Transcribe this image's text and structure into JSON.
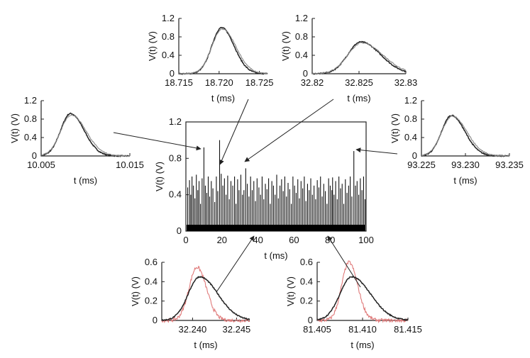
{
  "chart_data": [
    {
      "id": "main",
      "type": "line",
      "xlabel": "t  (ms)",
      "ylabel": "V(t)  (V)",
      "xlim": [
        0,
        100
      ],
      "ylim": [
        0,
        1.2
      ],
      "xticks": [
        "0",
        "20",
        "40",
        "60",
        "80",
        "100"
      ],
      "yticks": [
        "0",
        "0.4",
        "0.8",
        "1.2"
      ],
      "baseline_noise": [
        0,
        0.07
      ],
      "spikes": {
        "t": [
          1.0,
          2.0,
          2.7,
          3.4,
          4.2,
          5.0,
          5.8,
          6.6,
          7.3,
          8.1,
          9.0,
          10.0,
          10.8,
          11.6,
          12.4,
          13.2,
          14.1,
          15.0,
          16.0,
          16.9,
          17.7,
          18.7,
          19.6,
          20.5,
          21.4,
          22.3,
          23.2,
          24.1,
          25.0,
          26.0,
          27.0,
          27.8,
          28.7,
          29.5,
          30.5,
          31.4,
          32.2,
          33.2,
          34.1,
          35.0,
          35.9,
          36.8,
          37.7,
          38.6,
          39.5,
          40.5,
          41.4,
          42.3,
          43.2,
          44.1,
          45.0,
          45.9,
          46.8,
          47.7,
          48.6,
          49.5,
          50.4,
          51.3,
          52.2,
          53.1,
          54.0,
          54.9,
          55.8,
          56.7,
          57.6,
          58.5,
          59.4,
          60.3,
          61.2,
          62.1,
          63.0,
          63.9,
          64.8,
          65.7,
          66.6,
          67.5,
          68.4,
          69.3,
          70.2,
          71.1,
          72.0,
          72.9,
          73.8,
          74.7,
          75.6,
          76.5,
          77.4,
          78.3,
          79.2,
          80.1,
          81.0,
          81.4,
          82.2,
          83.1,
          84.0,
          84.9,
          85.8,
          86.7,
          87.6,
          88.5,
          89.4,
          90.3,
          91.2,
          92.1,
          93.2,
          94.1,
          95.0,
          95.9,
          96.8,
          97.7,
          98.6,
          99.4
        ],
        "v": [
          0.48,
          0.56,
          0.4,
          0.6,
          0.5,
          0.36,
          0.62,
          0.45,
          0.55,
          0.3,
          0.58,
          0.92,
          0.5,
          0.42,
          0.6,
          0.38,
          0.55,
          0.47,
          0.32,
          0.6,
          0.44,
          1.0,
          0.63,
          0.5,
          0.58,
          0.4,
          0.61,
          0.35,
          0.55,
          0.5,
          0.6,
          0.3,
          0.57,
          0.45,
          0.62,
          0.4,
          0.45,
          0.69,
          0.52,
          0.38,
          0.6,
          0.45,
          0.55,
          0.33,
          0.58,
          0.48,
          0.4,
          0.6,
          0.35,
          0.52,
          0.46,
          0.58,
          0.3,
          0.55,
          0.5,
          0.4,
          0.62,
          0.36,
          0.5,
          0.57,
          0.44,
          0.6,
          0.38,
          0.53,
          0.46,
          0.3,
          0.6,
          0.5,
          0.42,
          0.57,
          0.36,
          0.55,
          0.47,
          0.6,
          0.33,
          0.52,
          0.45,
          0.58,
          0.4,
          0.5,
          0.35,
          0.56,
          0.48,
          0.6,
          0.38,
          0.52,
          0.44,
          0.3,
          0.58,
          0.5,
          0.45,
          0.59,
          0.4,
          0.55,
          0.35,
          0.6,
          0.47,
          0.52,
          0.3,
          0.57,
          0.42,
          0.5,
          0.6,
          0.38,
          0.88,
          0.5,
          0.55,
          0.4,
          0.58,
          0.45,
          0.6,
          0.35
        ]
      }
    },
    {
      "id": "inset-10",
      "type": "line",
      "xlabel": "t  (ms)",
      "ylabel": "V(t)  (V)",
      "xlim": [
        10.005,
        10.015
      ],
      "ylim": [
        0,
        1.2
      ],
      "xticks": [
        "10.005",
        "10.015"
      ],
      "yticks": [
        "0",
        "0.4",
        "0.8",
        "1.2"
      ],
      "series": [
        {
          "color": "#222222",
          "peak_t": 10.0083,
          "peak_v": 0.92,
          "width": 0.0011,
          "skew": 1.4
        },
        {
          "color": "#888888",
          "peak_t": 10.0084,
          "peak_v": 0.89,
          "width": 0.0012,
          "skew": 1.4
        }
      ]
    },
    {
      "id": "inset-18",
      "type": "line",
      "xlabel": "t  (ms)",
      "ylabel": "V(t)  (V)",
      "xlim": [
        18.715,
        18.726
      ],
      "ylim": [
        0,
        1.2
      ],
      "xticks": [
        "18.715",
        "18.720",
        "18.725"
      ],
      "yticks": [
        "0",
        "0.4",
        "0.8",
        "1.2"
      ],
      "series": [
        {
          "color": "#222222",
          "peak_t": 18.7203,
          "peak_v": 1.0,
          "width": 0.0012,
          "skew": 1.3
        },
        {
          "color": "#888888",
          "peak_t": 18.7204,
          "peak_v": 0.97,
          "width": 0.0013,
          "skew": 1.3
        }
      ]
    },
    {
      "id": "inset-32b",
      "type": "line",
      "xlabel": "t  (ms)",
      "ylabel": "V(t)  (V)",
      "xlim": [
        32.82,
        32.83
      ],
      "ylim": [
        0,
        1.2
      ],
      "xticks": [
        "32.82",
        "32.825",
        "32.83"
      ],
      "yticks": [
        "0",
        "0.4",
        "0.8",
        "1.2"
      ],
      "series": [
        {
          "color": "#222222",
          "peak_t": 32.8252,
          "peak_v": 0.69,
          "width": 0.0014,
          "skew": 1.5
        },
        {
          "color": "#888888",
          "peak_t": 32.8253,
          "peak_v": 0.67,
          "width": 0.0015,
          "skew": 1.5
        }
      ]
    },
    {
      "id": "inset-93",
      "type": "line",
      "xlabel": "t  (ms)",
      "ylabel": "V(t)  (V)",
      "xlim": [
        93.225,
        93.235
      ],
      "ylim": [
        0,
        1.2
      ],
      "xticks": [
        "93.225",
        "93.230",
        "93.235"
      ],
      "yticks": [
        "0",
        "0.4",
        "0.8",
        "1.2"
      ],
      "series": [
        {
          "color": "#222222",
          "peak_t": 93.2284,
          "peak_v": 0.88,
          "width": 0.0011,
          "skew": 1.4
        },
        {
          "color": "#888888",
          "peak_t": 93.2285,
          "peak_v": 0.86,
          "width": 0.0012,
          "skew": 1.4
        }
      ]
    },
    {
      "id": "inset-32a",
      "type": "line",
      "xlabel": "t  (ms)",
      "ylabel": "V(t)  (V)",
      "xlim": [
        32.2365,
        32.2465
      ],
      "ylim": [
        0,
        0.6
      ],
      "xticks": [
        "32.240",
        "32.245"
      ],
      "yticks": [
        "0",
        "0.2",
        "0.4",
        "0.6"
      ],
      "series": [
        {
          "color": "#e07a7a",
          "peak_t": 32.2405,
          "peak_v": 0.55,
          "width": 0.0009,
          "skew": 1.2,
          "noisy": true
        },
        {
          "color": "#222222",
          "peak_t": 32.2408,
          "peak_v": 0.45,
          "width": 0.0013,
          "skew": 1.6
        }
      ]
    },
    {
      "id": "inset-81",
      "type": "line",
      "xlabel": "t  (ms)",
      "ylabel": "V(t)  (V)",
      "xlim": [
        81.405,
        81.415
      ],
      "ylim": [
        0,
        0.6
      ],
      "xticks": [
        "81.405",
        "81.410",
        "81.415"
      ],
      "yticks": [
        "0",
        "0.2",
        "0.4",
        "0.6"
      ],
      "series": [
        {
          "color": "#e07a7a",
          "peak_t": 81.4085,
          "peak_v": 0.6,
          "width": 0.0008,
          "skew": 1.2,
          "noisy": true
        },
        {
          "color": "#222222",
          "peak_t": 81.4088,
          "peak_v": 0.45,
          "width": 0.0013,
          "skew": 1.6
        }
      ]
    }
  ]
}
